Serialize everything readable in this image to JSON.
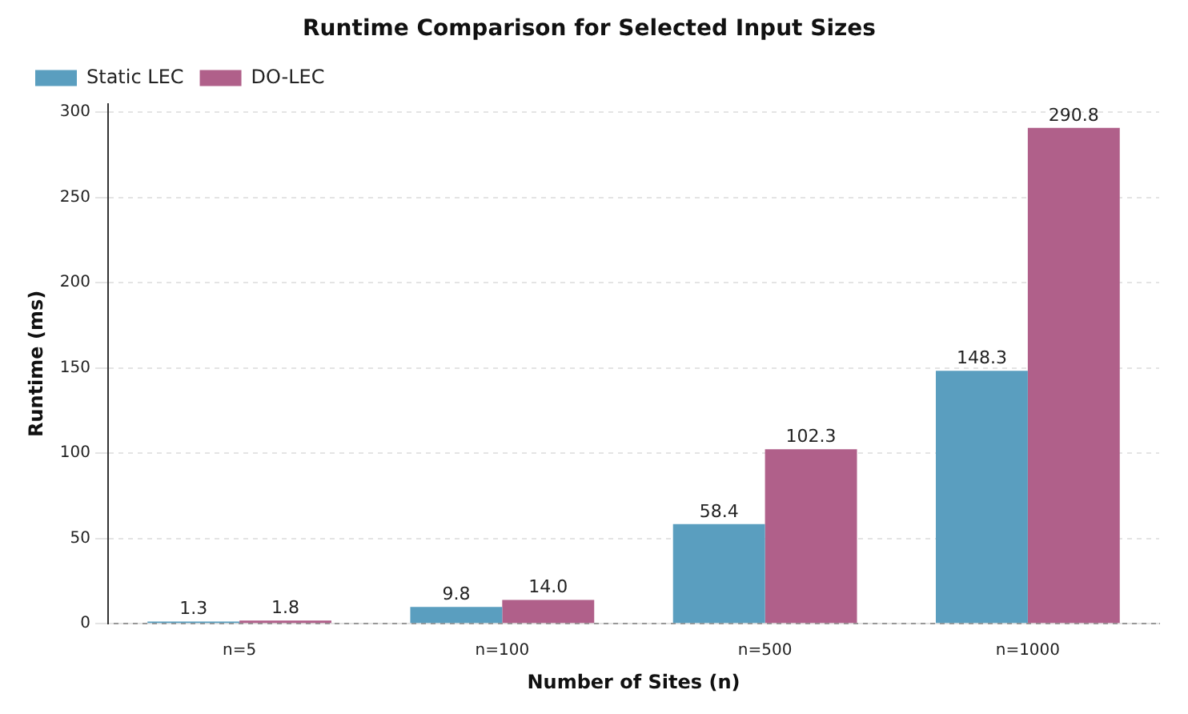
{
  "chart_data": {
    "type": "bar",
    "title": "Runtime Comparison for Selected Input Sizes",
    "xlabel": "Number of Sites (n)",
    "ylabel": "Runtime (ms)",
    "categories": [
      "n=5",
      "n=100",
      "n=500",
      "n=1000"
    ],
    "series": [
      {
        "name": "Static LEC",
        "color": "#5a9ebf",
        "values": [
          1.3,
          9.8,
          58.4,
          148.3
        ]
      },
      {
        "name": "DO-LEC",
        "color": "#b0608a",
        "values": [
          1.8,
          14.0,
          102.3,
          290.8
        ]
      }
    ],
    "value_labels": [
      [
        "1.3",
        "9.8",
        "58.4",
        "148.3"
      ],
      [
        "1.8",
        "14.0",
        "102.3",
        "290.8"
      ]
    ],
    "ylim": [
      0,
      305
    ],
    "yticks": [
      0,
      50,
      100,
      150,
      200,
      250,
      300
    ],
    "grid": "y",
    "legend": "top left"
  }
}
